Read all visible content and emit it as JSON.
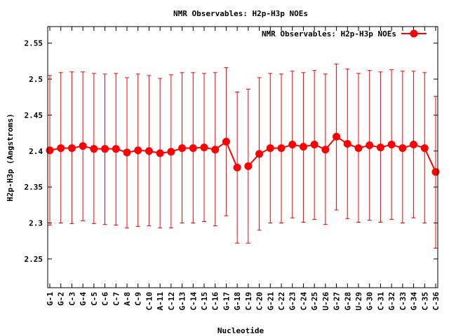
{
  "chart_data": {
    "type": "line",
    "title": "NMR Observables: H2p-H3p NOEs",
    "xlabel": "Nucleotide",
    "ylabel": "H2p-H3p (Angstroms)",
    "ylim": [
      2.21,
      2.573
    ],
    "yticks": [
      "2.25",
      "2.3",
      "2.35",
      "2.4",
      "2.45",
      "2.5",
      "2.55"
    ],
    "legend": {
      "label": "NMR Observables: H2p-H3p NOEs",
      "placement": "top-right"
    },
    "color": "#ff0000",
    "categories": [
      "G-1",
      "G-2",
      "C-3",
      "G-4",
      "C-5",
      "C-6",
      "C-7",
      "A-8",
      "C-9",
      "C-10",
      "A-11",
      "C-12",
      "G-13",
      "C-14",
      "C-15",
      "C-16",
      "G-17",
      "G-18",
      "C-19",
      "C-20",
      "G-21",
      "C-22",
      "G-23",
      "C-24",
      "G-25",
      "U-26",
      "G-27",
      "G-28",
      "U-29",
      "G-30",
      "C-31",
      "G-32",
      "C-33",
      "G-34",
      "C-35",
      "C-36"
    ],
    "series": [
      {
        "name": "NMR Observables: H2p-H3p NOEs",
        "segments": [
          {
            "start": 0,
            "values": [
              2.401,
              2.404,
              2.404,
              2.407,
              2.403,
              2.403,
              2.403,
              2.398,
              2.401,
              2.4,
              2.397,
              2.399,
              2.404,
              2.404,
              2.405,
              2.402,
              2.413,
              2.377
            ],
            "err_low": [
              2.297,
              2.3,
              2.299,
              2.303,
              2.299,
              2.298,
              2.297,
              2.293,
              2.295,
              2.296,
              2.293,
              2.293,
              2.3,
              2.3,
              2.302,
              2.296,
              2.31,
              2.272
            ],
            "err_high": [
              2.505,
              2.509,
              2.51,
              2.51,
              2.508,
              2.507,
              2.508,
              2.502,
              2.507,
              2.505,
              2.501,
              2.506,
              2.509,
              2.509,
              2.508,
              2.509,
              2.516,
              2.482
            ]
          },
          {
            "start": 18,
            "values": [
              2.379,
              2.396,
              2.404,
              2.404,
              2.409,
              2.406,
              2.409,
              2.402,
              2.42,
              2.41,
              2.404,
              2.408,
              2.405,
              2.409,
              2.404,
              2.409,
              2.404,
              2.371
            ],
            "err_low": [
              2.272,
              2.29,
              2.3,
              2.3,
              2.307,
              2.301,
              2.305,
              2.298,
              2.318,
              2.306,
              2.301,
              2.304,
              2.301,
              2.305,
              2.3,
              2.307,
              2.3,
              2.265
            ],
            "err_high": [
              2.486,
              2.502,
              2.508,
              2.507,
              2.511,
              2.509,
              2.512,
              2.507,
              2.521,
              2.514,
              2.508,
              2.512,
              2.51,
              2.513,
              2.511,
              2.511,
              2.509,
              2.476
            ]
          }
        ]
      }
    ]
  }
}
